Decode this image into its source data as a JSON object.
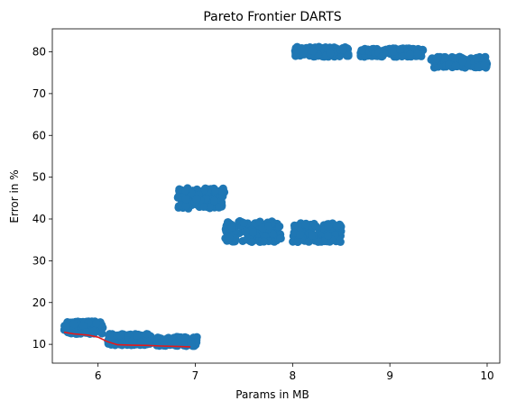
{
  "chart_data": {
    "type": "scatter",
    "title": "Pareto Frontier DARTS",
    "xlabel": "Params in MB",
    "ylabel": "Error in %",
    "xlim": [
      5.53,
      10.13
    ],
    "ylim": [
      5.5,
      85.5
    ],
    "xticks": [
      6,
      7,
      8,
      9,
      10
    ],
    "yticks": [
      10,
      20,
      30,
      40,
      50,
      60,
      70,
      80
    ],
    "grid": false,
    "legend": "none",
    "colors": {
      "points": "#1f77b4",
      "frontier": "#e31a1c"
    },
    "clusters": [
      {
        "x_range": [
          5.65,
          6.05
        ],
        "y_range": [
          12.5,
          15.5
        ]
      },
      {
        "x_range": [
          6.1,
          6.55
        ],
        "y_range": [
          9.8,
          12.5
        ]
      },
      {
        "x_range": [
          6.6,
          7.02
        ],
        "y_range": [
          9.6,
          11.8
        ]
      },
      {
        "x_range": [
          6.82,
          7.3
        ],
        "y_range": [
          42.5,
          47.5
        ]
      },
      {
        "x_range": [
          7.3,
          7.88
        ],
        "y_range": [
          34.5,
          39.5
        ]
      },
      {
        "x_range": [
          8.0,
          8.5
        ],
        "y_range": [
          34.5,
          39.0
        ]
      },
      {
        "x_range": [
          8.02,
          8.58
        ],
        "y_range": [
          78.8,
          81.2
        ]
      },
      {
        "x_range": [
          8.7,
          9.35
        ],
        "y_range": [
          78.8,
          80.8
        ]
      },
      {
        "x_range": [
          9.42,
          10.0
        ],
        "y_range": [
          76.2,
          78.8
        ]
      }
    ],
    "frontier": {
      "x": [
        5.65,
        5.75,
        5.9,
        6.0,
        6.1,
        6.2,
        6.35,
        6.5,
        6.65,
        6.8,
        6.95
      ],
      "y": [
        12.9,
        12.5,
        12.2,
        11.7,
        10.6,
        9.9,
        9.8,
        9.75,
        9.6,
        9.5,
        9.4
      ]
    }
  }
}
